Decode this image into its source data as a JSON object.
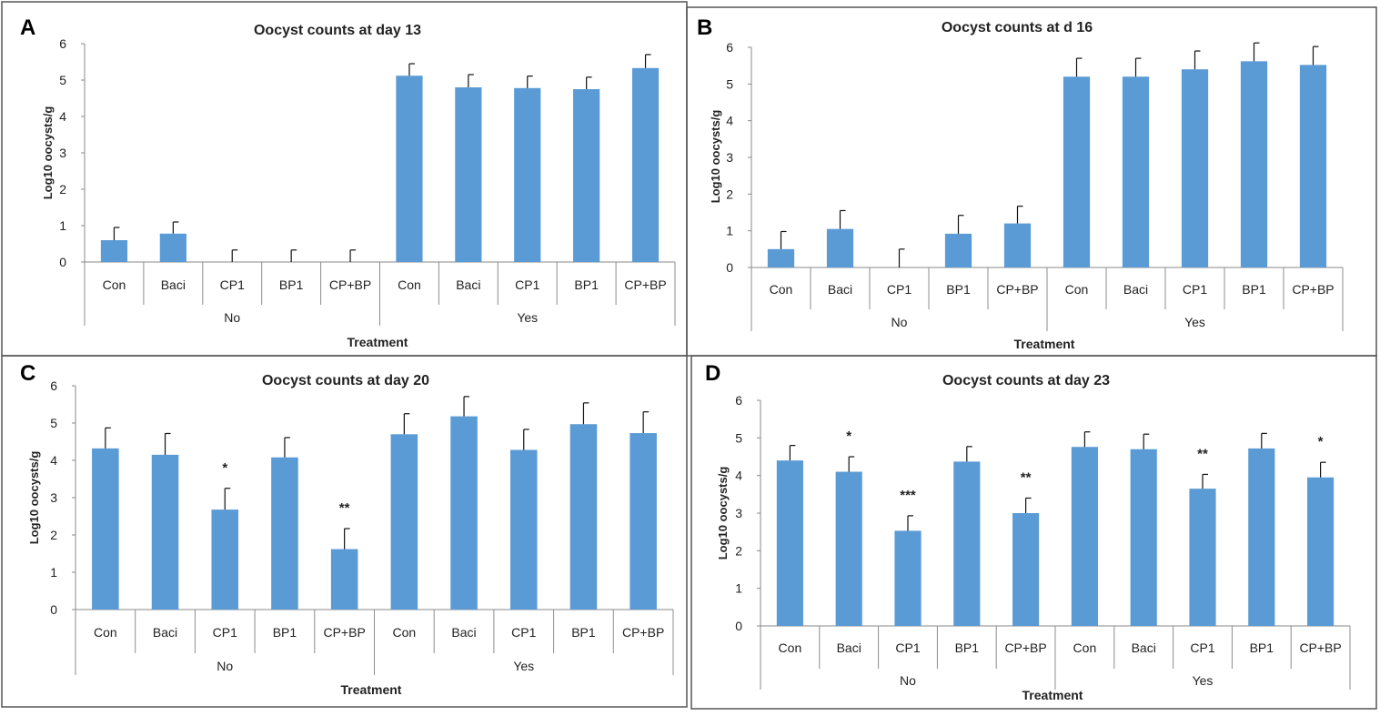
{
  "colors": {
    "bar": "#5b9bd5",
    "panel_border": "#555555"
  },
  "chart_data": [
    {
      "panel": "A",
      "type": "bar",
      "title": "Oocyst counts at day 13",
      "xlabel": "Treatment",
      "ylabel": "Log10 oocysts/g",
      "ylim": [
        0,
        6
      ],
      "yticks": [
        0,
        1,
        2,
        3,
        4,
        5,
        6
      ],
      "groups": [
        {
          "label": "No",
          "categories": [
            "Con",
            "Baci",
            "CP1",
            "BP1",
            "CP+BP"
          ]
        },
        {
          "label": "Yes",
          "categories": [
            "Con",
            "Baci",
            "CP1",
            "BP1",
            "CP+BP"
          ]
        }
      ],
      "values": [
        0.6,
        0.78,
        0,
        0,
        0,
        5.12,
        4.8,
        4.78,
        4.75,
        5.33
      ],
      "errors": [
        0.35,
        0.32,
        0.33,
        0.33,
        0.33,
        0.33,
        0.35,
        0.33,
        0.33,
        0.37
      ],
      "significance": [
        "",
        "",
        "",
        "",
        "",
        "",
        "",
        "",
        "",
        ""
      ]
    },
    {
      "panel": "B",
      "type": "bar",
      "title": "Oocyst counts at d 16",
      "xlabel": "Treatment",
      "ylabel": "Log10 oocysts/g",
      "ylim": [
        0,
        6
      ],
      "yticks": [
        0,
        1,
        2,
        3,
        4,
        5,
        6
      ],
      "groups": [
        {
          "label": "No",
          "categories": [
            "Con",
            "Baci",
            "CP1",
            "BP1",
            "CP+BP"
          ]
        },
        {
          "label": "Yes",
          "categories": [
            "Con",
            "Baci",
            "CP1",
            "BP1",
            "CP+BP"
          ]
        }
      ],
      "values": [
        0.5,
        1.05,
        0,
        0.92,
        1.2,
        5.2,
        5.2,
        5.4,
        5.62,
        5.52
      ],
      "errors": [
        0.48,
        0.5,
        0.5,
        0.5,
        0.47,
        0.5,
        0.5,
        0.5,
        0.5,
        0.5
      ],
      "significance": [
        "",
        "",
        "",
        "",
        "",
        "",
        "",
        "",
        "",
        ""
      ]
    },
    {
      "panel": "C",
      "type": "bar",
      "title": "Oocyst counts at day 20",
      "xlabel": "Treatment",
      "ylabel": "Log10 oocysts/g",
      "ylim": [
        0,
        6
      ],
      "yticks": [
        0,
        1,
        2,
        3,
        4,
        5,
        6
      ],
      "groups": [
        {
          "label": "No",
          "categories": [
            "Con",
            "Baci",
            "CP1",
            "BP1",
            "CP+BP"
          ]
        },
        {
          "label": "Yes",
          "categories": [
            "Con",
            "Baci",
            "CP1",
            "BP1",
            "CP+BP"
          ]
        }
      ],
      "values": [
        4.32,
        4.15,
        2.68,
        4.08,
        1.62,
        4.7,
        5.18,
        4.28,
        4.97,
        4.73
      ],
      "errors": [
        0.55,
        0.57,
        0.57,
        0.53,
        0.55,
        0.55,
        0.53,
        0.55,
        0.57,
        0.57
      ],
      "significance": [
        "",
        "",
        "*",
        "",
        "**",
        "",
        "",
        "",
        "",
        ""
      ]
    },
    {
      "panel": "D",
      "type": "bar",
      "title": "Oocyst counts at day 23",
      "xlabel": "Treatment",
      "ylabel": "Log10 oocysts/g",
      "ylim": [
        0,
        6
      ],
      "yticks": [
        0,
        1,
        2,
        3,
        4,
        5,
        6
      ],
      "groups": [
        {
          "label": "No",
          "categories": [
            "Con",
            "Baci",
            "CP1",
            "BP1",
            "CP+BP"
          ]
        },
        {
          "label": "Yes",
          "categories": [
            "Con",
            "Baci",
            "CP1",
            "BP1",
            "CP+BP"
          ]
        }
      ],
      "values": [
        4.4,
        4.1,
        2.53,
        4.37,
        3.0,
        4.76,
        4.7,
        3.65,
        4.72,
        3.95
      ],
      "errors": [
        0.4,
        0.4,
        0.4,
        0.4,
        0.4,
        0.4,
        0.4,
        0.38,
        0.4,
        0.4
      ],
      "significance": [
        "",
        "*",
        "***",
        "",
        "**",
        "",
        "",
        "**",
        "",
        "*"
      ]
    }
  ]
}
